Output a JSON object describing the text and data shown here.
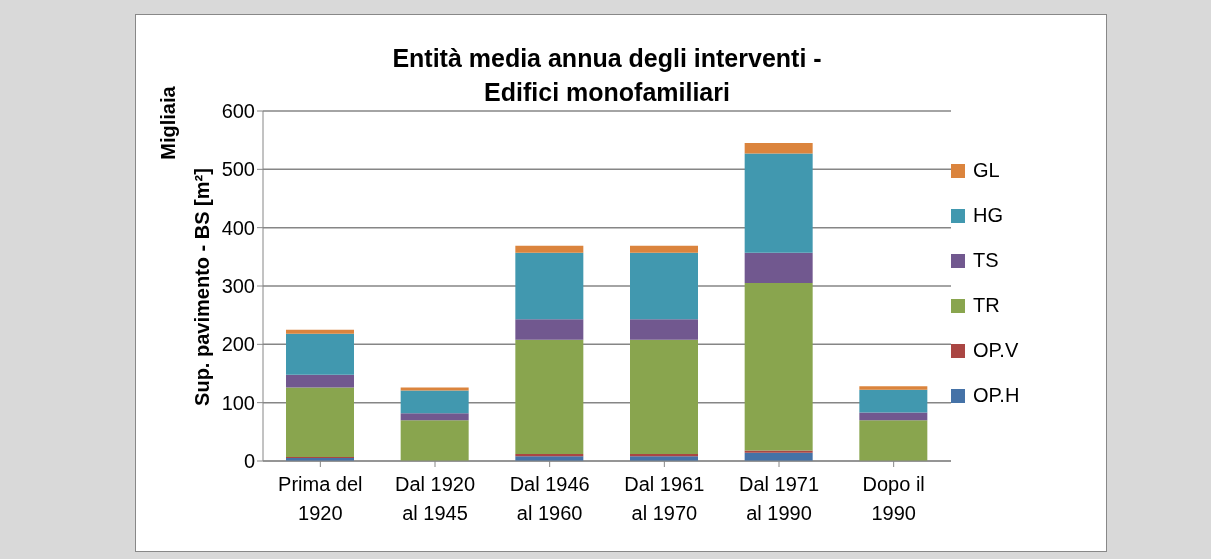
{
  "chart_data": {
    "type": "bar",
    "stacked": true,
    "title": "Entità media annua degli interventi -\nEdifici monofamiliari",
    "ylabel": "Sup. pavimento - BS [m²]",
    "annotations": [
      "Migliaia"
    ],
    "categories": [
      "Prima del 1920",
      "Dal 1920 al 1945",
      "Dal 1946 al 1960",
      "Dal 1961 al 1970",
      "Dal 1971 al 1990",
      "Dopo il 1990"
    ],
    "series": [
      {
        "name": "OP.H",
        "color": "#4572a7",
        "values": [
          5,
          null,
          8,
          8,
          14,
          null
        ]
      },
      {
        "name": "OP.V",
        "color": "#aa4643",
        "values": [
          2,
          null,
          4,
          4,
          4,
          null
        ]
      },
      {
        "name": "TR",
        "color": "#89a54e",
        "values": [
          119,
          70,
          196,
          196,
          287,
          70
        ]
      },
      {
        "name": "TS",
        "color": "#71588f",
        "values": [
          22,
          12,
          35,
          35,
          52,
          13
        ]
      },
      {
        "name": "HG",
        "color": "#4198af",
        "values": [
          70,
          39,
          114,
          114,
          170,
          39
        ]
      },
      {
        "name": "GL",
        "color": "#db843d",
        "values": [
          7,
          5,
          12,
          12,
          18,
          6
        ]
      }
    ],
    "ylim": [
      0,
      600
    ],
    "yticks": [
      0,
      100,
      200,
      300,
      400,
      500,
      600
    ],
    "grid": "y",
    "legend": "right"
  }
}
